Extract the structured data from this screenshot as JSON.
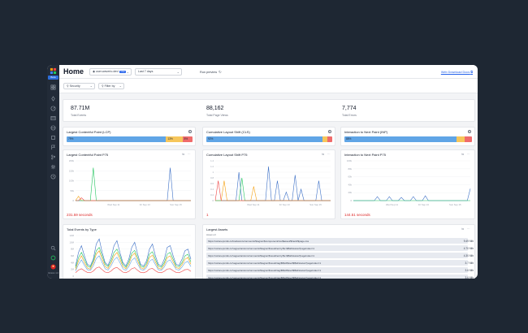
{
  "nav": {
    "badge": "Beta",
    "version": "Version 1.0",
    "icons": [
      "grid-icon",
      "rocket-icon",
      "gauge-icon",
      "table-icon",
      "globe-icon",
      "box-icon",
      "flag-icon",
      "git-icon",
      "settings-icon",
      "history-icon"
    ]
  },
  "header": {
    "title": "Home",
    "site": "user.waverio.dev/",
    "site_tag": "Live",
    "range": "Last 7 days",
    "run_label": "Run preview",
    "download": "Web Download Docs"
  },
  "filters": {
    "security": "Security",
    "filter_by": "Filter by"
  },
  "stats": [
    {
      "value": "87.71M",
      "label": "Total Events"
    },
    {
      "value": "88,162",
      "label": "Total Page Views"
    },
    {
      "value": "7,774",
      "label": "Total Errors"
    }
  ],
  "vitals": [
    {
      "title": "Largest Contentful Paint (LCP)",
      "segments": [
        {
          "label": "79%",
          "value": 79,
          "color": "#60a5e6"
        },
        {
          "label": "13%",
          "value": 13,
          "color": "#f6c65b"
        },
        {
          "label": "8%",
          "value": 8,
          "color": "#ef6b6b"
        }
      ]
    },
    {
      "title": "Cumulative Layout Shift (CLS)",
      "segments": [
        {
          "label": "92%",
          "value": 92,
          "color": "#60a5e6"
        },
        {
          "label": "",
          "value": 4,
          "color": "#f6c65b"
        },
        {
          "label": "",
          "value": 4,
          "color": "#ef6b6b"
        }
      ]
    },
    {
      "title": "Interaction to Next Paint (INP)",
      "segments": [
        {
          "label": "88%",
          "value": 88,
          "color": "#60a5e6"
        },
        {
          "label": "",
          "value": 6,
          "color": "#f6c65b"
        },
        {
          "label": "",
          "value": 6,
          "color": "#ef6b6b"
        }
      ]
    }
  ],
  "chart_data": [
    {
      "type": "line",
      "title": "Largest Contentful Paint P75",
      "yticks": [
        "200k",
        "150k",
        "100k",
        "50k",
        "0"
      ],
      "xticks": [
        "Wed Sep 11",
        "Fri Sep 13",
        "Sun Sep 15"
      ],
      "ylim": [
        0,
        200000
      ],
      "x": [
        0,
        1,
        2,
        3,
        4,
        5,
        6,
        7,
        8,
        9,
        10,
        11,
        12,
        13,
        14,
        15,
        16,
        17,
        18,
        19,
        20,
        21,
        22,
        23,
        24,
        25,
        26,
        27,
        28,
        29,
        30,
        31,
        32,
        33,
        34,
        35,
        36,
        37,
        38,
        39
      ],
      "series": [
        {
          "color": "#3b6fc6",
          "values": [
            0,
            0,
            0,
            0,
            0,
            0,
            0,
            0,
            0,
            0,
            0,
            0,
            0,
            0,
            0,
            0,
            0,
            0,
            0,
            0,
            0,
            0,
            0,
            0,
            0,
            0,
            0,
            0,
            0,
            0,
            0,
            0,
            165000,
            0,
            0,
            0,
            0,
            0,
            0,
            0
          ]
        },
        {
          "color": "#f59e0b",
          "values": [
            0,
            22000,
            0,
            0,
            0,
            0,
            0,
            0,
            0,
            0,
            0,
            0,
            0,
            0,
            0,
            0,
            0,
            0,
            0,
            0,
            0,
            0,
            0,
            0,
            0,
            0,
            0,
            0,
            0,
            0,
            0,
            0,
            0,
            0,
            0,
            0,
            0,
            0,
            0,
            0
          ]
        },
        {
          "color": "#22c55e",
          "values": [
            0,
            0,
            0,
            0,
            0,
            0,
            165000,
            0,
            0,
            0,
            0,
            0,
            0,
            0,
            0,
            0,
            0,
            0,
            0,
            0,
            0,
            0,
            0,
            0,
            0,
            0,
            0,
            0,
            0,
            0,
            0,
            0,
            0,
            0,
            0,
            0,
            0,
            0,
            0,
            0
          ]
        },
        {
          "color": "#ef4444",
          "values": [
            0,
            0,
            14000,
            0,
            0,
            0,
            0,
            0,
            0,
            0,
            0,
            0,
            0,
            0,
            0,
            0,
            0,
            0,
            0,
            0,
            0,
            0,
            0,
            0,
            0,
            0,
            0,
            0,
            0,
            0,
            0,
            0,
            0,
            0,
            0,
            0,
            0,
            0,
            0,
            0
          ]
        }
      ],
      "footer": "231.59 seconds"
    },
    {
      "type": "line",
      "title": "Cumulative Layout Shift P75",
      "yticks": [
        "1.4",
        "1.2",
        "1",
        "0.8",
        "0.6",
        "0.4",
        "0.2",
        "0"
      ],
      "xticks": [
        "Wed Sep 11",
        "Fri Sep 13",
        "Sun Sep 15"
      ],
      "ylim": [
        0,
        1.4
      ],
      "x": [
        0,
        1,
        2,
        3,
        4,
        5,
        6,
        7,
        8,
        9,
        10,
        11,
        12,
        13,
        14,
        15,
        16,
        17,
        18,
        19,
        20,
        21,
        22,
        23,
        24,
        25,
        26,
        27,
        28,
        29,
        30,
        31,
        32,
        33,
        34,
        35,
        36,
        37,
        38,
        39
      ],
      "series": [
        {
          "color": "#3b6fc6",
          "values": [
            0,
            0,
            0,
            0,
            0,
            0,
            0,
            0,
            1.0,
            0,
            0,
            0,
            0,
            0,
            0,
            0,
            0,
            0,
            1.2,
            0,
            0,
            0.7,
            0,
            0,
            0.3,
            0,
            0,
            0.9,
            0,
            0.4,
            0,
            0,
            0,
            0,
            0,
            0.7,
            0,
            0,
            0,
            0
          ]
        },
        {
          "color": "#f59e0b",
          "values": [
            0,
            0,
            0,
            0.7,
            0,
            0,
            0,
            0,
            0,
            0,
            0,
            0,
            0,
            0.5,
            0,
            0,
            0,
            0,
            0,
            0,
            0,
            0,
            0,
            0,
            0,
            0,
            0,
            0,
            0,
            0,
            0,
            0,
            0,
            0,
            0,
            0,
            0,
            0,
            0,
            0
          ]
        },
        {
          "color": "#22c55e",
          "values": [
            0,
            0,
            0,
            0,
            0,
            0,
            0,
            0,
            0,
            0.8,
            0,
            0,
            0,
            0,
            0,
            0,
            0,
            0,
            0,
            0,
            0,
            0,
            0,
            0,
            0,
            0,
            0,
            0,
            0,
            0,
            0,
            0,
            0,
            0,
            0,
            0,
            0,
            0,
            0,
            0
          ]
        },
        {
          "color": "#ef4444",
          "values": [
            0,
            0.7,
            0,
            0,
            0,
            0,
            0,
            0,
            0,
            0,
            0,
            0,
            0,
            0,
            0,
            0,
            0,
            0,
            0,
            0,
            0,
            0,
            0,
            0,
            0,
            0,
            0,
            0,
            0,
            0,
            0,
            0,
            0,
            0,
            0,
            0,
            0,
            0,
            0,
            0
          ]
        }
      ],
      "footer": "1"
    },
    {
      "type": "line",
      "title": "Interaction to Next Paint P75",
      "yticks": [
        "100k",
        "80k",
        "60k",
        "40k",
        "20k",
        "0"
      ],
      "xticks": [
        "Wed Sep 11",
        "Fri Sep 13",
        "Sun Sep 15"
      ],
      "ylim": [
        0,
        100000
      ],
      "x": [
        0,
        1,
        2,
        3,
        4,
        5,
        6,
        7,
        8,
        9,
        10,
        11,
        12,
        13,
        14,
        15,
        16,
        17,
        18,
        19,
        20,
        21,
        22,
        23,
        24,
        25,
        26,
        27,
        28,
        29,
        30,
        31,
        32,
        33,
        34,
        35,
        36,
        37,
        38,
        39
      ],
      "series": [
        {
          "color": "#3b6fc6",
          "values": [
            0,
            0,
            0,
            0,
            0,
            0,
            0,
            0,
            10000,
            0,
            0,
            0,
            10000,
            0,
            0,
            0,
            8000,
            0,
            0,
            0,
            10000,
            0,
            0,
            0,
            12000,
            0,
            0,
            0,
            0,
            0,
            0,
            0,
            0,
            0,
            0,
            0,
            0,
            0,
            0,
            30000
          ]
        },
        {
          "color": "#22c55e",
          "values": [
            0,
            0,
            0,
            0,
            0,
            0,
            0,
            0,
            0,
            0,
            0,
            0,
            0,
            0,
            0,
            0,
            0,
            0,
            0,
            0,
            0,
            0,
            0,
            0,
            0,
            0,
            0,
            0,
            0,
            0,
            0,
            0,
            0,
            0,
            0,
            0,
            0,
            0,
            0,
            0
          ]
        }
      ],
      "footer": "144.51 seconds"
    },
    {
      "type": "line",
      "title": "Total Events by Type",
      "yticks": [
        "12M",
        "10M",
        "8M",
        "6M",
        "4M",
        "2M",
        "0"
      ],
      "xticks": [],
      "ylim": [
        0,
        12000000
      ],
      "x": [
        0,
        1,
        2,
        3,
        4,
        5,
        6,
        7,
        8,
        9,
        10,
        11,
        12,
        13,
        14,
        15,
        16,
        17,
        18,
        19,
        20,
        21,
        22,
        23,
        24,
        25,
        26,
        27,
        28,
        29,
        30,
        31,
        32,
        33,
        34,
        35,
        36,
        37,
        38,
        39
      ],
      "series": [
        {
          "color": "#3b6fc6",
          "values": [
            3000000,
            7000000,
            9000000,
            6000000,
            3500000,
            3000000,
            5000000,
            9500000,
            11000000,
            7000000,
            4000000,
            3200000,
            5500000,
            9000000,
            10500000,
            7000000,
            4000000,
            3000000,
            5000000,
            8500000,
            10000000,
            6500000,
            3500000,
            3000000,
            4500000,
            8000000,
            9500000,
            6000000,
            3500000,
            3000000,
            5000000,
            8500000,
            9000000,
            6000000,
            3500000,
            3200000,
            5000000,
            7500000,
            8000000,
            5000000
          ]
        },
        {
          "color": "#22c55e",
          "values": [
            2500000,
            5500000,
            7000000,
            5000000,
            3000000,
            2600000,
            4500000,
            7500000,
            8500000,
            6000000,
            3500000,
            2800000,
            4500000,
            7000000,
            8000000,
            6000000,
            3500000,
            2600000,
            4200000,
            6800000,
            7600000,
            5500000,
            3000000,
            2600000,
            3800000,
            6500000,
            7200000,
            5000000,
            3000000,
            2600000,
            4000000,
            6500000,
            7000000,
            5000000,
            3000000,
            2800000,
            4000000,
            6000000,
            6500000,
            4200000
          ]
        },
        {
          "color": "#f59e0b",
          "values": [
            2000000,
            4500000,
            6000000,
            4000000,
            2400000,
            2100000,
            3800000,
            6500000,
            7500000,
            5000000,
            2800000,
            2300000,
            3800000,
            6000000,
            7000000,
            5000000,
            2800000,
            2200000,
            3500000,
            6000000,
            6800000,
            4500000,
            2500000,
            2100000,
            3200000,
            5500000,
            6200000,
            4200000,
            2400000,
            2100000,
            3400000,
            5500000,
            6000000,
            4200000,
            2500000,
            2300000,
            3400000,
            5000000,
            5500000,
            3500000
          ]
        },
        {
          "color": "#60a5e6",
          "values": [
            1500000,
            3500000,
            4800000,
            3200000,
            1900000,
            1700000,
            3000000,
            5200000,
            6000000,
            4000000,
            2200000,
            1800000,
            3000000,
            4800000,
            5600000,
            4000000,
            2200000,
            1700000,
            2800000,
            4700000,
            5400000,
            3600000,
            2000000,
            1700000,
            2600000,
            4400000,
            5000000,
            3400000,
            1900000,
            1700000,
            2700000,
            4400000,
            4800000,
            3400000,
            2000000,
            1800000,
            2700000,
            4000000,
            4400000,
            2800000
          ]
        },
        {
          "color": "#ef4444",
          "values": [
            1000000,
            1800000,
            2200000,
            1600000,
            1100000,
            1000000,
            1500000,
            2400000,
            2700000,
            1900000,
            1200000,
            1000000,
            1500000,
            2300000,
            2600000,
            1900000,
            1200000,
            1000000,
            1400000,
            2200000,
            2500000,
            1700000,
            1100000,
            1000000,
            1300000,
            2100000,
            2300000,
            1600000,
            1100000,
            1000000,
            1400000,
            2100000,
            2200000,
            1600000,
            1100000,
            1000000,
            1400000,
            1900000,
            2000000,
            1400000
          ]
        }
      ]
    }
  ],
  "assets": {
    "title": "Largest Assets",
    "column": "Asset url",
    "rows": [
      {
        "url": "https://uxlonepxmtk.cc/tracks/environments/$region/$component/css/$asset/$hash/$page.css",
        "size": "9.49 Mib"
      },
      {
        "url": "https://uxlonepxmtk.cc/vaguertain/environments/$region/$result/entry/$v-$f$id/status?pageIndex=1",
        "size": "4.70 Mib"
      },
      {
        "url": "https://uxlonepxmtk.cc/vaguertain/environments/$region/$result/entry/$v-$f$id/status?pageIndex=1",
        "size": "4.30 Mib"
      },
      {
        "url": "https://uxlonepxmtk.cc/vaguertain/environments/$region/$result/tag/$f$id/$tool/$f$id/status?pageIndex=1",
        "size": "3.7 Mib"
      },
      {
        "url": "https://uxlonepxmtk.cc/vaguertain/environments/$region/$result/tag/$f$id/$tool/$f$id/status?pageIndex=1",
        "size": "3.6 Mib"
      },
      {
        "url": "https://uxlonepxmtk.cc/vaguertain/environments/$region/$result/tag/$f$id/$tool/$f$id/status?pageIndex=1",
        "size": "3.6 Mib"
      }
    ]
  }
}
